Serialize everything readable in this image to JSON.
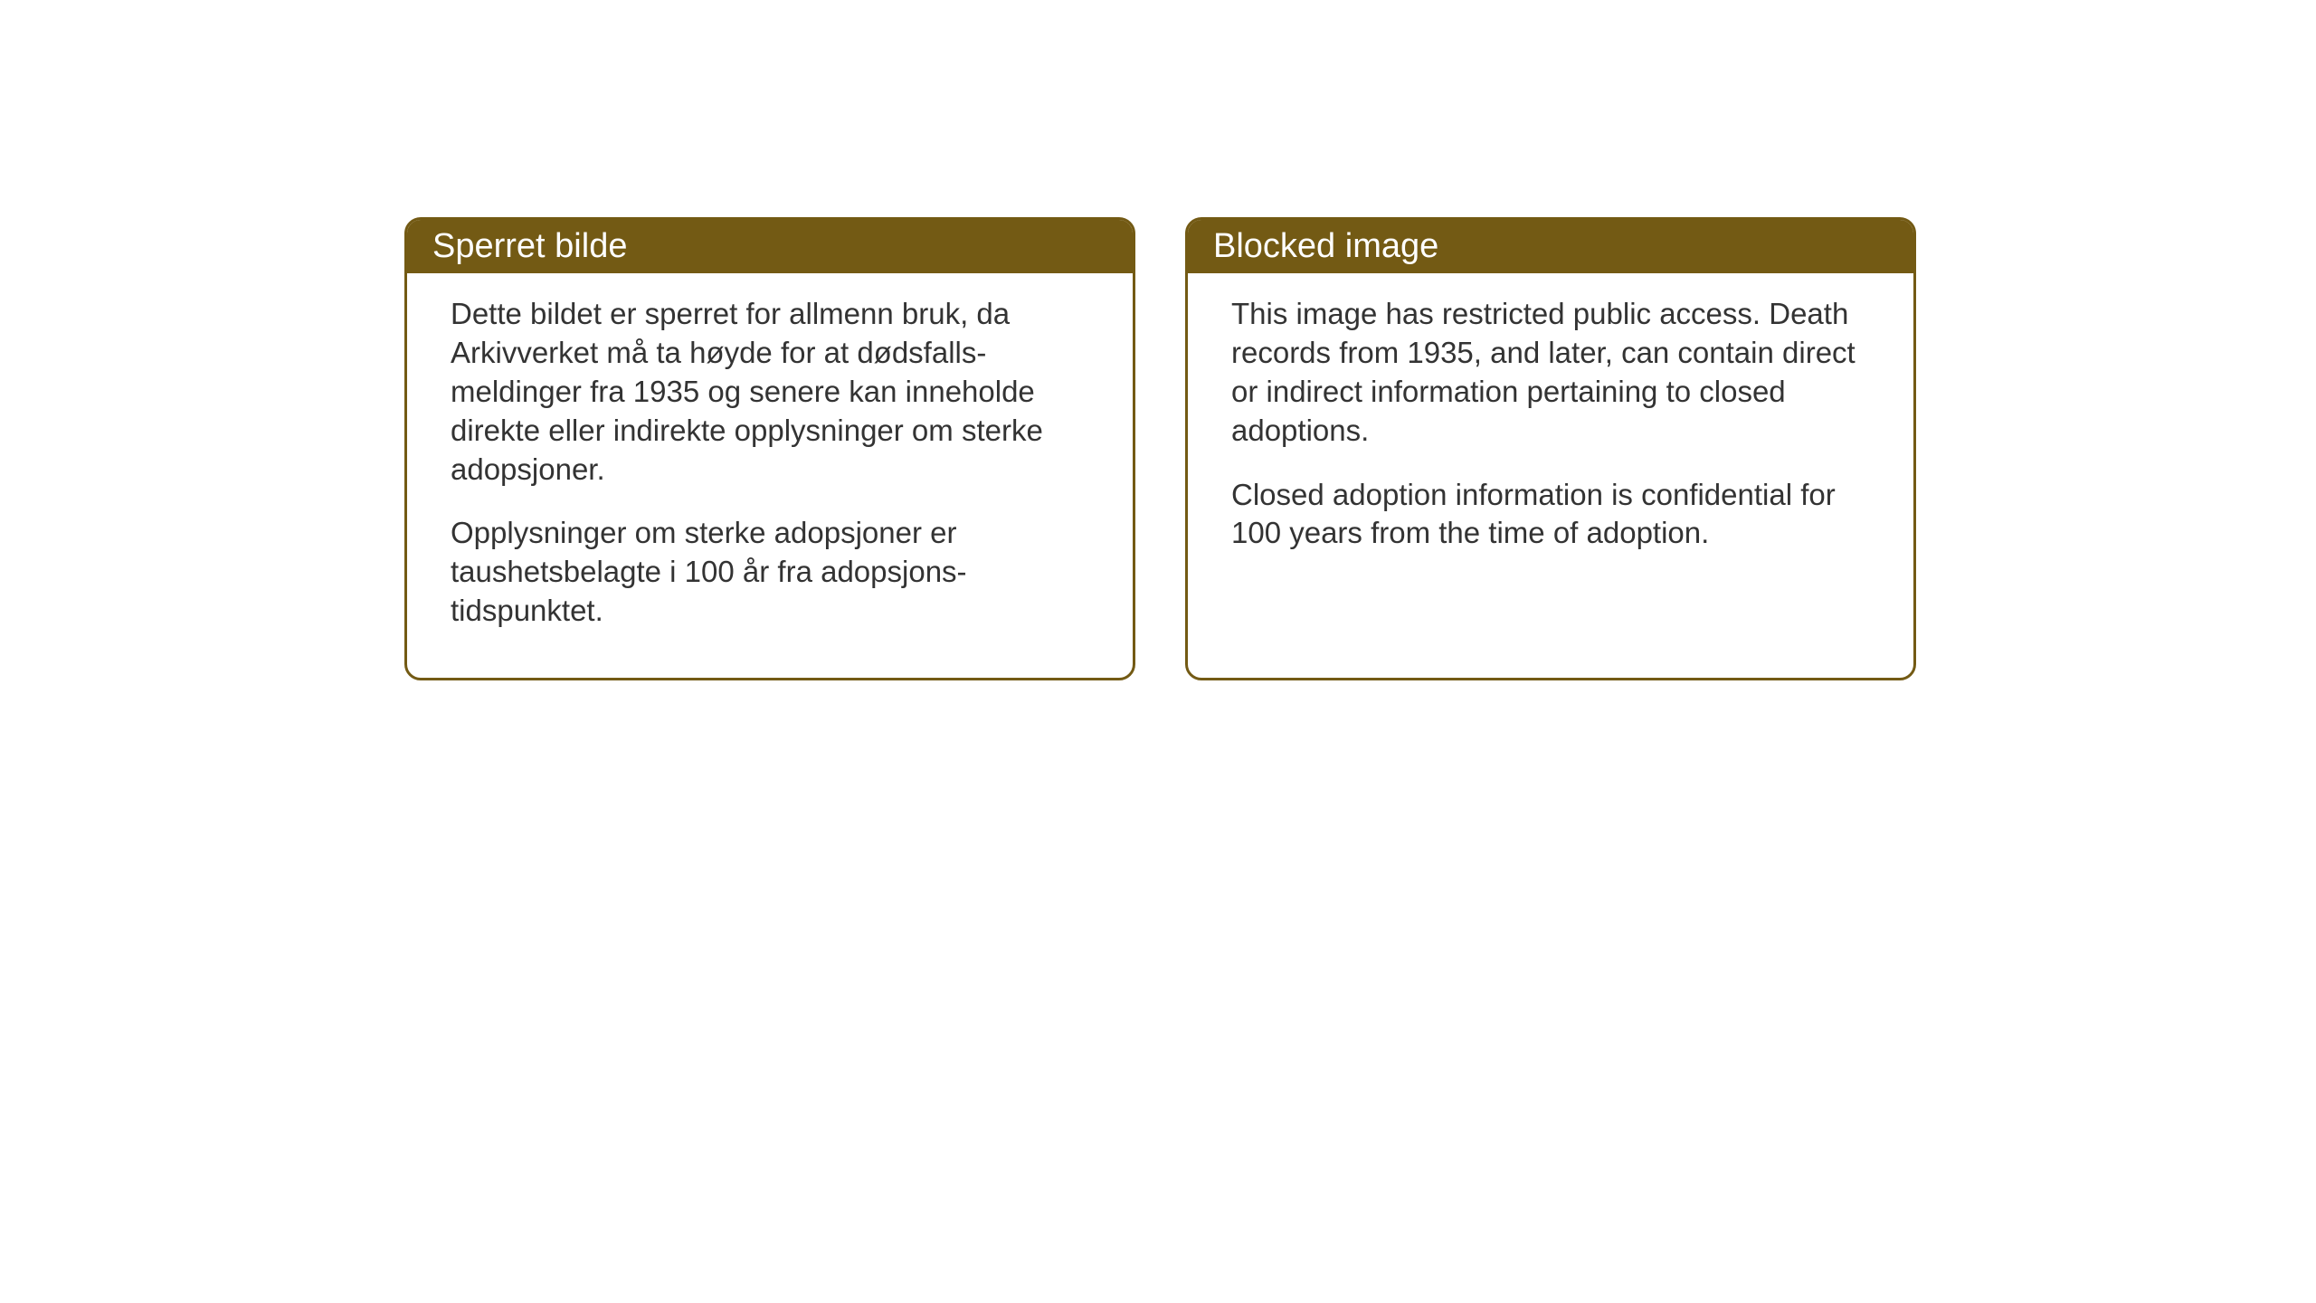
{
  "notices": {
    "left": {
      "title": "Sperret bilde",
      "paragraph1": "Dette bildet er sperret for allmenn bruk, da Arkivverket må ta høyde for at dødsfalls-meldinger fra 1935 og senere kan inneholde direkte eller indirekte opplysninger om sterke adopsjoner.",
      "paragraph2": "Opplysninger om sterke adopsjoner er taushetsbelagte i 100 år fra adopsjons-tidspunktet."
    },
    "right": {
      "title": "Blocked image",
      "paragraph1": "This image has restricted public access. Death records from 1935, and later, can contain direct or indirect information pertaining to closed adoptions.",
      "paragraph2": "Closed adoption information is confidential for 100 years from the time of adoption."
    }
  },
  "styling": {
    "header_bg_color": "#735a14",
    "header_text_color": "#ffffff",
    "border_color": "#735a14",
    "body_bg_color": "#ffffff",
    "body_text_color": "#333333",
    "page_bg_color": "#ffffff",
    "border_radius": 18,
    "border_width": 3,
    "title_fontsize": 38,
    "body_fontsize": 33
  }
}
